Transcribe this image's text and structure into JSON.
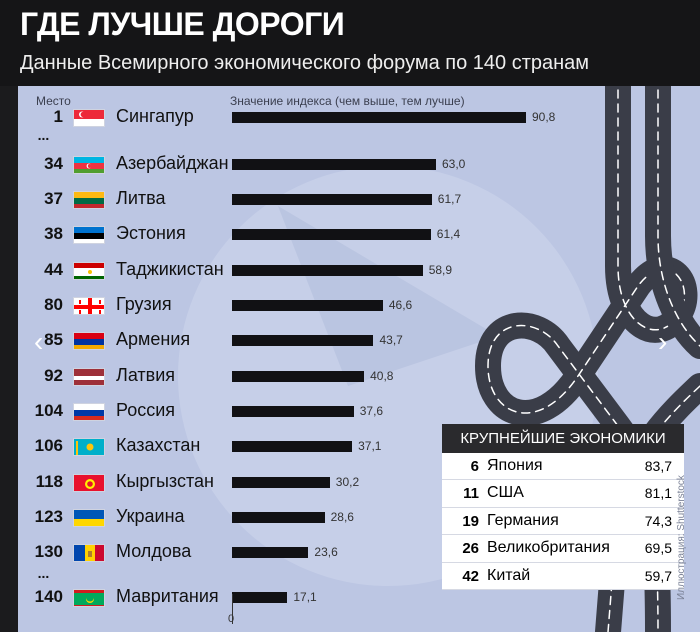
{
  "header": {
    "title": "ГДЕ ЛУЧШЕ ДОРОГИ",
    "subtitle": "Данные Всемирного экономического форума по 140 странам"
  },
  "columns": {
    "rank": "Место",
    "value": "Значение индекса (чем выше, тем лучше)"
  },
  "chart_data": {
    "type": "bar",
    "orientation": "horizontal",
    "title": "ГДЕ ЛУЧШЕ ДОРОГИ",
    "subtitle": "Данные Всемирного экономического форума по 140 странам",
    "xlabel": "Значение индекса (чем выше, тем лучше)",
    "rank_label": "Место",
    "xlim": [
      0,
      100
    ],
    "axis_min_label": "0",
    "rows": [
      {
        "rank": "1",
        "country": "Сингапур",
        "value": 90.8,
        "label": "90,8",
        "flag": "singapore",
        "gap_after": true
      },
      {
        "rank": "34",
        "country": "Азербайджан",
        "value": 63.0,
        "label": "63,0",
        "flag": "azerbaijan"
      },
      {
        "rank": "37",
        "country": "Литва",
        "value": 61.7,
        "label": "61,7",
        "flag": "lithuania"
      },
      {
        "rank": "38",
        "country": "Эстония",
        "value": 61.4,
        "label": "61,4",
        "flag": "estonia"
      },
      {
        "rank": "44",
        "country": "Таджикистан",
        "value": 58.9,
        "label": "58,9",
        "flag": "tajikistan"
      },
      {
        "rank": "80",
        "country": "Грузия",
        "value": 46.6,
        "label": "46,6",
        "flag": "georgia"
      },
      {
        "rank": "85",
        "country": "Армения",
        "value": 43.7,
        "label": "43,7",
        "flag": "armenia"
      },
      {
        "rank": "92",
        "country": "Латвия",
        "value": 40.8,
        "label": "40,8",
        "flag": "latvia"
      },
      {
        "rank": "104",
        "country": "Россия",
        "value": 37.6,
        "label": "37,6",
        "flag": "russia"
      },
      {
        "rank": "106",
        "country": "Казахстан",
        "value": 37.1,
        "label": "37,1",
        "flag": "kazakhstan"
      },
      {
        "rank": "118",
        "country": "Кыргызстан",
        "value": 30.2,
        "label": "30,2",
        "flag": "kyrgyzstan"
      },
      {
        "rank": "123",
        "country": "Украина",
        "value": 28.6,
        "label": "28,6",
        "flag": "ukraine"
      },
      {
        "rank": "130",
        "country": "Молдова",
        "value": 23.6,
        "label": "23,6",
        "flag": "moldova",
        "gap_after": true
      },
      {
        "rank": "140",
        "country": "Мавритания",
        "value": 17.1,
        "label": "17,1",
        "flag": "mauritania"
      }
    ]
  },
  "economies": {
    "title": "КРУПНЕЙШИЕ ЭКОНОМИКИ",
    "rows": [
      {
        "rank": "6",
        "country": "Япония",
        "value": "83,7"
      },
      {
        "rank": "11",
        "country": "США",
        "value": "81,1"
      },
      {
        "rank": "19",
        "country": "Германия",
        "value": "74,3"
      },
      {
        "rank": "26",
        "country": "Великобритания",
        "value": "69,5"
      },
      {
        "rank": "42",
        "country": "Китай",
        "value": "59,7"
      }
    ]
  },
  "ellipsis": "...",
  "nav": {
    "prev_icon": "chevron-left-icon",
    "next_icon": "chevron-right-icon",
    "prev": "‹",
    "next": "›"
  },
  "credit": "Иллюстрация: Shutterstock",
  "colors": {
    "panel": "#bcc6e3",
    "bar": "#111114",
    "road": "#3a3d48",
    "road_edge": "#ffffff"
  }
}
